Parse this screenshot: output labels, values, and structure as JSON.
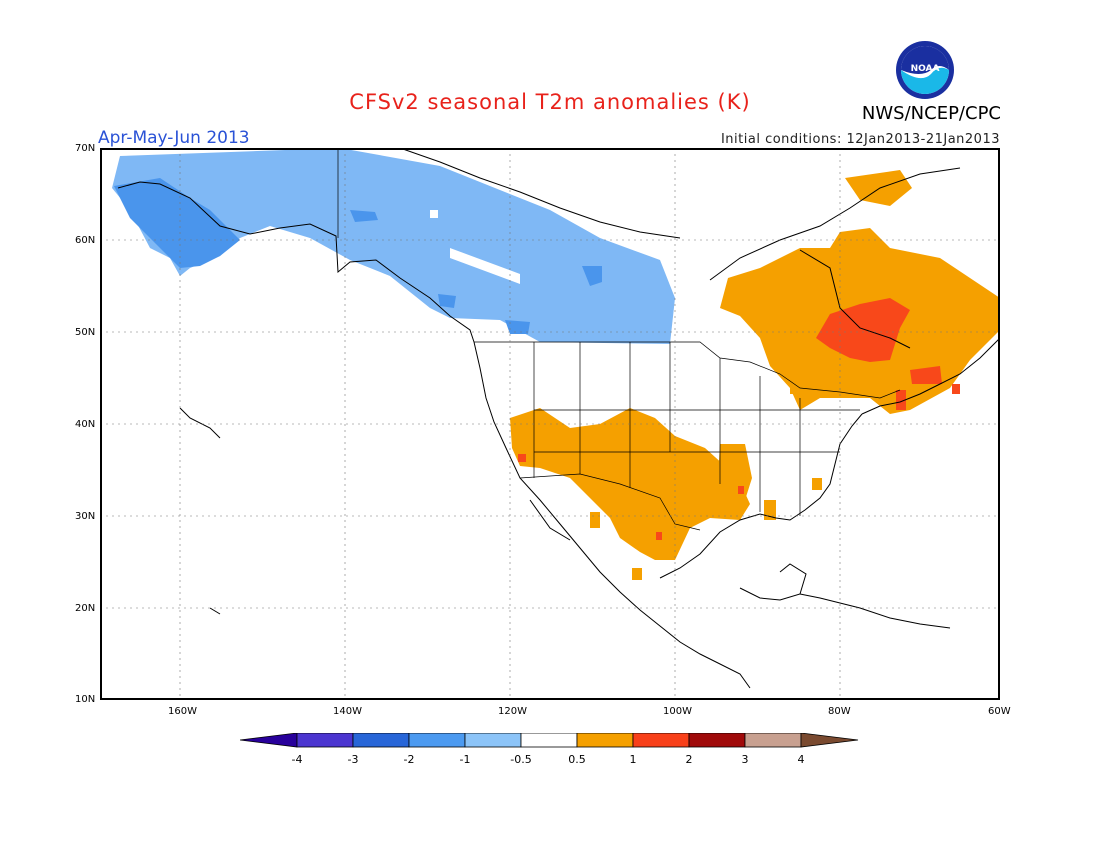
{
  "header": {
    "title": "CFSv2 seasonal T2m anomalies (K)",
    "period": "Apr-May-Jun 2013",
    "initial_conditions": "Initial conditions: 12Jan2013-21Jan2013",
    "agency": "NWS/NCEP/CPC",
    "logo_text": "NOAA"
  },
  "map": {
    "lat_labels": [
      "70N",
      "60N",
      "50N",
      "40N",
      "30N",
      "20N",
      "10N"
    ],
    "lon_labels": [
      "160W",
      "140W",
      "120W",
      "100W",
      "80W",
      "60W"
    ],
    "colors": {
      "cold_3": "#2060d8",
      "cold_2": "#4a95ec",
      "cold_1": "#7fb8f5",
      "warm_1": "#f5a000",
      "warm_2": "#f8481a"
    }
  },
  "colorbar": {
    "labels": [
      "-4",
      "-3",
      "-2",
      "-1",
      "-0.5",
      "0.5",
      "1",
      "2",
      "3",
      "4"
    ],
    "colors": [
      "#28009b",
      "#4b35d0",
      "#2866d8",
      "#4c9af0",
      "#8cc4f8",
      "#ffffff",
      "#f5a000",
      "#f8401a",
      "#a00a0a",
      "#c8a090",
      "#7a4a30"
    ]
  }
}
